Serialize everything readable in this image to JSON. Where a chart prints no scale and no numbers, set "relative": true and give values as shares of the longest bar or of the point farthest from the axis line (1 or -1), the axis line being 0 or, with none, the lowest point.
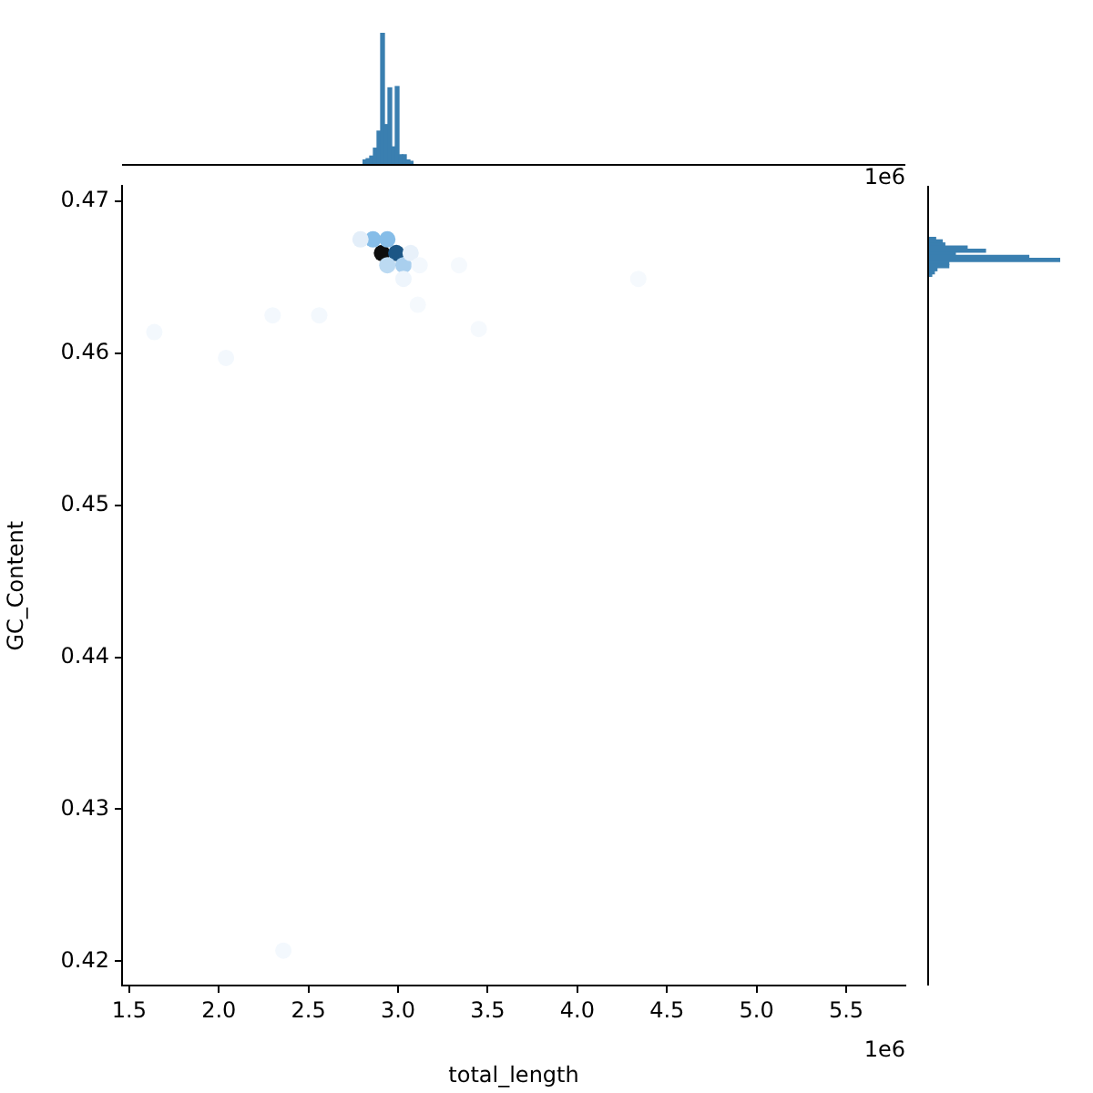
{
  "chart_data": [
    {
      "type": "scatter",
      "xlabel": "total_length",
      "ylabel": "GC_Content",
      "annotations": [
        "1e6"
      ],
      "marker": "circle",
      "xlim": [
        1.46,
        5.83
      ],
      "xticks": [
        1.5,
        {
          "value": 2,
          "label": "2.0"
        },
        2.5,
        {
          "value": 3,
          "label": "3.0"
        },
        3.5,
        {
          "value": 4,
          "label": "4.0"
        },
        4.5,
        {
          "value": 5,
          "label": "5.0"
        },
        5.5
      ],
      "ylim": [
        0.4184,
        0.471
      ],
      "yticks": [
        0.42,
        0.43,
        0.44,
        0.45,
        0.46,
        0.47
      ],
      "x": [
        2.91,
        2.99,
        2.86,
        2.94,
        2.79,
        2.94,
        3.03,
        3.07,
        3.03,
        3.12,
        3.11,
        3.34,
        1.64,
        2.04,
        2.3,
        2.56,
        2.36,
        3.45,
        4.34
      ],
      "values": [
        0.4666,
        0.4666,
        0.4675,
        0.4675,
        0.4675,
        0.4658,
        0.4658,
        0.4666,
        0.4649,
        0.4658,
        0.4632,
        0.4658,
        0.4614,
        0.4597,
        0.4625,
        0.4625,
        0.4207,
        0.4616,
        0.4649
      ],
      "colors": [
        "#0d0d0d",
        "#1c5685",
        "#86bde8",
        "#86bde8",
        "#e3eef9",
        "#bcdaf2",
        "#a9cfee",
        "#e8f1fa",
        "#eef5fc",
        "#f3f8fd",
        "#f5f9fd",
        "#f5f9fd",
        "#f3f8fd",
        "#f3f8fd",
        "#f3f8fd",
        "#f3f8fd",
        "#f3f8fd",
        "#f5f9fd",
        "#f5f9fd"
      ]
    },
    {
      "type": "bar",
      "relative": true,
      "color": "#3a7fb0",
      "annotations": [
        "1e6"
      ],
      "tick_labels": false,
      "categories": [
        null,
        null,
        null,
        null,
        null,
        null,
        null,
        null,
        null,
        null,
        null,
        null,
        null,
        null
      ],
      "values": [
        0.03,
        0.04,
        0.06,
        0.12,
        0.25,
        1,
        0.3,
        0.58,
        0.13,
        0.59,
        0.07,
        0.07,
        0.03,
        0.02
      ]
    },
    {
      "type": "bar",
      "relative": true,
      "orientation": "horizontal",
      "color": "#3a7fb0",
      "tick_labels": false,
      "categories": [
        null,
        null,
        null,
        null,
        null,
        null,
        null,
        null,
        null,
        null,
        null,
        null,
        null
      ],
      "values": [
        0.05,
        0.1,
        0.12,
        0.29,
        0.43,
        0.2,
        0.76,
        1,
        0.15,
        0.15,
        0.06,
        0.04,
        0.02
      ]
    }
  ]
}
